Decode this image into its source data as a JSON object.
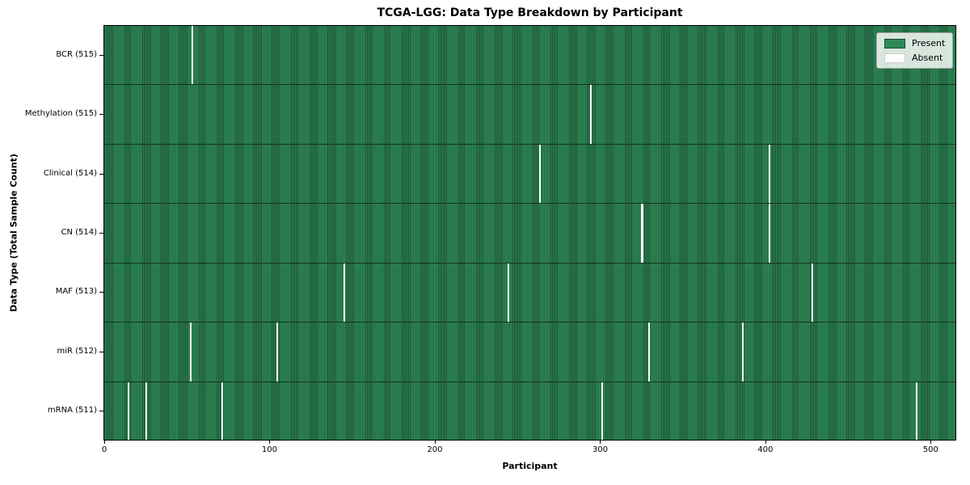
{
  "chart_data": {
    "type": "heatmap",
    "title": "TCGA-LGG: Data Type Breakdown by Participant",
    "xlabel": "Participant",
    "ylabel": "Data Type (Total Sample Count)",
    "x_ticks": [
      0,
      100,
      200,
      300,
      400,
      500
    ],
    "xlim": [
      0,
      516
    ],
    "total_participants": 516,
    "grid": false,
    "colors": {
      "present": "#2e8b57",
      "present_edge": "#1b4931",
      "absent": "#ffffff",
      "row_separator": "#15331f"
    },
    "legend": {
      "position": "upper right",
      "entries": [
        {
          "label": "Present",
          "color": "#2e8b57"
        },
        {
          "label": "Absent",
          "color": "#ffffff"
        }
      ]
    },
    "rows": [
      {
        "name": "bcr",
        "label": "BCR (515)",
        "data_type": "BCR",
        "sample_count": 515,
        "absent_participants": [
          53
        ]
      },
      {
        "name": "methylation",
        "label": "Methylation (515)",
        "data_type": "Methylation",
        "sample_count": 515,
        "absent_participants": [
          294
        ]
      },
      {
        "name": "clinical",
        "label": "Clinical (514)",
        "data_type": "Clinical",
        "sample_count": 514,
        "absent_participants": [
          263,
          402
        ]
      },
      {
        "name": "cn",
        "label": "CN (514)",
        "data_type": "CN",
        "sample_count": 514,
        "absent_participants": [
          325,
          402
        ]
      },
      {
        "name": "maf",
        "label": "MAF (513)",
        "data_type": "MAF",
        "sample_count": 513,
        "absent_participants": [
          145,
          244,
          428
        ]
      },
      {
        "name": "mir",
        "label": "miR (512)",
        "data_type": "miR",
        "sample_count": 512,
        "absent_participants": [
          52,
          104,
          329,
          386
        ]
      },
      {
        "name": "mrna",
        "label": "mRNA (511)",
        "data_type": "mRNA",
        "sample_count": 511,
        "absent_participants": [
          14,
          25,
          71,
          301,
          491
        ]
      }
    ]
  }
}
